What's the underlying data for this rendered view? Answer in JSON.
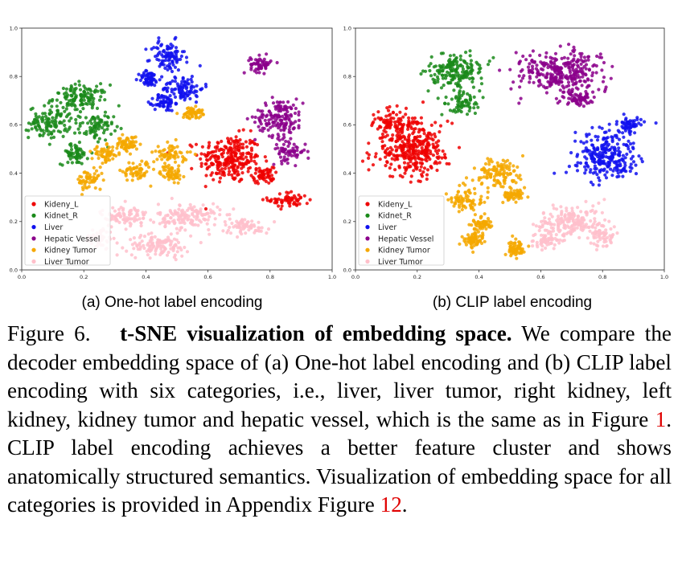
{
  "chart_data": [
    {
      "type": "scatter",
      "subcaption": "(a) One-hot label encoding",
      "xlim": [
        0.0,
        1.0
      ],
      "ylim": [
        0.0,
        1.0
      ],
      "xticks": [
        "0.0",
        "0.2",
        "0.4",
        "0.6",
        "0.8",
        "1.0"
      ],
      "yticks": [
        "0.0",
        "0.2",
        "0.4",
        "0.6",
        "0.8",
        "1.0"
      ],
      "legend_position": "lower-left",
      "series": [
        {
          "name": "Kideny_L",
          "color": "#ee0000",
          "clusters": [
            [
              0.67,
              0.46,
              0.09,
              0.09
            ],
            [
              0.86,
              0.29,
              0.06,
              0.03
            ],
            [
              0.78,
              0.39,
              0.03,
              0.03
            ]
          ]
        },
        {
          "name": "Kidnet_R",
          "color": "#1a8a1a",
          "clusters": [
            [
              0.19,
              0.71,
              0.08,
              0.05
            ],
            [
              0.09,
              0.61,
              0.06,
              0.06
            ],
            [
              0.24,
              0.59,
              0.05,
              0.05
            ],
            [
              0.17,
              0.48,
              0.04,
              0.04
            ]
          ]
        },
        {
          "name": "Liver",
          "color": "#1010ee",
          "clusters": [
            [
              0.47,
              0.88,
              0.05,
              0.06
            ],
            [
              0.52,
              0.75,
              0.06,
              0.05
            ],
            [
              0.46,
              0.69,
              0.03,
              0.03
            ],
            [
              0.41,
              0.79,
              0.03,
              0.03
            ]
          ]
        },
        {
          "name": "Hepatic Vessel",
          "color": "#8b008b",
          "clusters": [
            [
              0.83,
              0.63,
              0.07,
              0.07
            ],
            [
              0.77,
              0.85,
              0.03,
              0.03
            ],
            [
              0.86,
              0.49,
              0.05,
              0.04
            ]
          ]
        },
        {
          "name": "Kidney Tumor",
          "color": "#f5a800",
          "clusters": [
            [
              0.27,
              0.48,
              0.04,
              0.03
            ],
            [
              0.37,
              0.41,
              0.04,
              0.04
            ],
            [
              0.48,
              0.48,
              0.05,
              0.04
            ],
            [
              0.22,
              0.37,
              0.04,
              0.04
            ],
            [
              0.34,
              0.52,
              0.03,
              0.03
            ],
            [
              0.55,
              0.65,
              0.03,
              0.02
            ],
            [
              0.48,
              0.4,
              0.03,
              0.03
            ]
          ]
        },
        {
          "name": "Liver Tumor",
          "color": "#ffc0cb",
          "clusters": [
            [
              0.33,
              0.22,
              0.07,
              0.04
            ],
            [
              0.54,
              0.22,
              0.09,
              0.05
            ],
            [
              0.72,
              0.18,
              0.07,
              0.03
            ],
            [
              0.44,
              0.1,
              0.09,
              0.04
            ],
            [
              0.25,
              0.13,
              0.04,
              0.04
            ]
          ]
        }
      ]
    },
    {
      "type": "scatter",
      "subcaption": "(b) CLIP label encoding",
      "xlim": [
        0.0,
        1.0
      ],
      "ylim": [
        0.0,
        1.0
      ],
      "xticks": [
        "0.0",
        "0.2",
        "0.4",
        "0.6",
        "0.8",
        "1.0"
      ],
      "yticks": [
        "0.0",
        "0.2",
        "0.4",
        "0.6",
        "0.8",
        "1.0"
      ],
      "legend_position": "lower-left",
      "series": [
        {
          "name": "Kideny_L",
          "color": "#ee0000",
          "clusters": [
            [
              0.18,
              0.5,
              0.11,
              0.1
            ],
            [
              0.12,
              0.61,
              0.05,
              0.05
            ]
          ]
        },
        {
          "name": "Kidnet_R",
          "color": "#1a8a1a",
          "clusters": [
            [
              0.33,
              0.82,
              0.08,
              0.07
            ],
            [
              0.35,
              0.69,
              0.05,
              0.04
            ]
          ]
        },
        {
          "name": "Liver",
          "color": "#1010ee",
          "clusters": [
            [
              0.81,
              0.47,
              0.09,
              0.09
            ],
            [
              0.89,
              0.6,
              0.04,
              0.03
            ]
          ]
        },
        {
          "name": "Hepatic Vessel",
          "color": "#8b008b",
          "clusters": [
            [
              0.66,
              0.82,
              0.12,
              0.08
            ],
            [
              0.71,
              0.71,
              0.05,
              0.03
            ]
          ]
        },
        {
          "name": "Kidney Tumor",
          "color": "#f5a800",
          "clusters": [
            [
              0.46,
              0.4,
              0.07,
              0.05
            ],
            [
              0.36,
              0.29,
              0.05,
              0.05
            ],
            [
              0.51,
              0.31,
              0.03,
              0.03
            ],
            [
              0.38,
              0.13,
              0.03,
              0.03
            ],
            [
              0.52,
              0.09,
              0.03,
              0.03
            ],
            [
              0.41,
              0.19,
              0.03,
              0.03
            ]
          ]
        },
        {
          "name": "Liver Tumor",
          "color": "#ffc0cb",
          "clusters": [
            [
              0.7,
              0.2,
              0.09,
              0.06
            ],
            [
              0.62,
              0.12,
              0.05,
              0.04
            ],
            [
              0.8,
              0.14,
              0.04,
              0.04
            ]
          ]
        }
      ]
    }
  ],
  "caption": {
    "label": "Figure 6.",
    "bold": "t-SNE visualization of embedding space.",
    "text1": "We compare the decoder embedding space of (a) One-hot label encoding and (b) CLIP label encoding with six categories, i.e., liver, liver tumor, right kidney, left kidney, kidney tumor and hepatic vessel, which is the same as in Figure ",
    "ref1": "1",
    "text2": ". CLIP label encoding achieves a better feature cluster and shows anatomically structured semantics. Visualization of embedding space for all categories is provided in Appendix Figure ",
    "ref2": "12",
    "text3": "."
  }
}
